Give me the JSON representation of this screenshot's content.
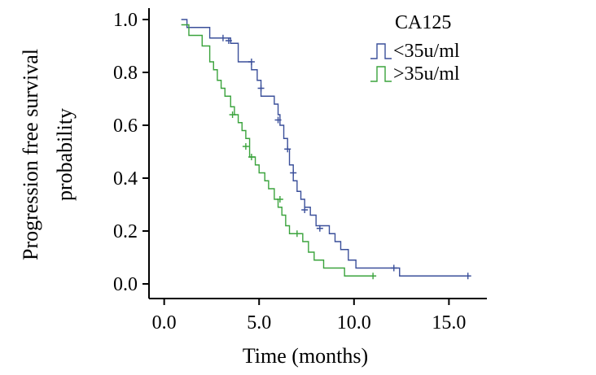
{
  "chart_data": {
    "type": "line",
    "subtype": "kaplan-meier",
    "title": "",
    "xlabel": "Time (months)",
    "ylabel_lines": [
      "Progression free survival",
      "probability"
    ],
    "xlim": [
      -0.8,
      17.0
    ],
    "ylim": [
      0.0,
      1.05
    ],
    "x_ticks": [
      0,
      5,
      10,
      15
    ],
    "x_tick_labels": [
      "0.0",
      "5.0",
      "10.0",
      "15.0"
    ],
    "y_ticks": [
      0.0,
      0.2,
      0.4,
      0.6,
      0.8,
      1.0
    ],
    "y_tick_labels": [
      "0.0",
      "0.2",
      "0.4",
      "0.6",
      "0.8",
      "1.0"
    ],
    "grid": false,
    "legend": {
      "title": "CA125",
      "position": "top-right"
    },
    "series": [
      {
        "name": "<35u/ml",
        "color": "#3a4f9a",
        "steps": [
          [
            0.9,
            1.0
          ],
          [
            1.2,
            0.97
          ],
          [
            2.4,
            0.93
          ],
          [
            3.5,
            0.91
          ],
          [
            3.9,
            0.84
          ],
          [
            4.6,
            0.81
          ],
          [
            4.9,
            0.77
          ],
          [
            5.1,
            0.71
          ],
          [
            5.8,
            0.68
          ],
          [
            6.0,
            0.64
          ],
          [
            6.1,
            0.6
          ],
          [
            6.3,
            0.55
          ],
          [
            6.5,
            0.51
          ],
          [
            6.6,
            0.45
          ],
          [
            6.8,
            0.39
          ],
          [
            7.0,
            0.35
          ],
          [
            7.2,
            0.32
          ],
          [
            7.4,
            0.29
          ],
          [
            7.7,
            0.26
          ],
          [
            8.0,
            0.22
          ],
          [
            8.7,
            0.19
          ],
          [
            9.0,
            0.16
          ],
          [
            9.3,
            0.13
          ],
          [
            9.7,
            0.09
          ],
          [
            10.1,
            0.06
          ],
          [
            12.4,
            0.03
          ],
          [
            16.0,
            0.03
          ]
        ],
        "censored": [
          [
            3.1,
            0.93
          ],
          [
            3.4,
            0.92
          ],
          [
            4.6,
            0.84
          ],
          [
            5.1,
            0.74
          ],
          [
            6.0,
            0.62
          ],
          [
            6.5,
            0.51
          ],
          [
            6.8,
            0.42
          ],
          [
            7.4,
            0.28
          ],
          [
            8.2,
            0.21
          ],
          [
            12.1,
            0.06
          ],
          [
            16.0,
            0.03
          ]
        ]
      },
      {
        "name": ">35u/ml",
        "color": "#3aa33c",
        "steps": [
          [
            0.9,
            0.98
          ],
          [
            1.3,
            0.94
          ],
          [
            2.0,
            0.9
          ],
          [
            2.4,
            0.84
          ],
          [
            2.6,
            0.81
          ],
          [
            2.8,
            0.77
          ],
          [
            3.0,
            0.74
          ],
          [
            3.2,
            0.71
          ],
          [
            3.5,
            0.67
          ],
          [
            3.7,
            0.64
          ],
          [
            3.9,
            0.61
          ],
          [
            4.1,
            0.58
          ],
          [
            4.3,
            0.55
          ],
          [
            4.5,
            0.48
          ],
          [
            4.8,
            0.45
          ],
          [
            5.0,
            0.42
          ],
          [
            5.3,
            0.39
          ],
          [
            5.5,
            0.36
          ],
          [
            5.8,
            0.32
          ],
          [
            6.0,
            0.29
          ],
          [
            6.2,
            0.26
          ],
          [
            6.4,
            0.22
          ],
          [
            6.6,
            0.19
          ],
          [
            7.3,
            0.16
          ],
          [
            7.6,
            0.12
          ],
          [
            7.9,
            0.09
          ],
          [
            8.4,
            0.06
          ],
          [
            9.5,
            0.03
          ],
          [
            11.0,
            0.03
          ]
        ],
        "censored": [
          [
            3.6,
            0.64
          ],
          [
            4.3,
            0.52
          ],
          [
            4.6,
            0.48
          ],
          [
            6.1,
            0.32
          ],
          [
            7.0,
            0.19
          ],
          [
            11.0,
            0.03
          ]
        ]
      }
    ]
  }
}
